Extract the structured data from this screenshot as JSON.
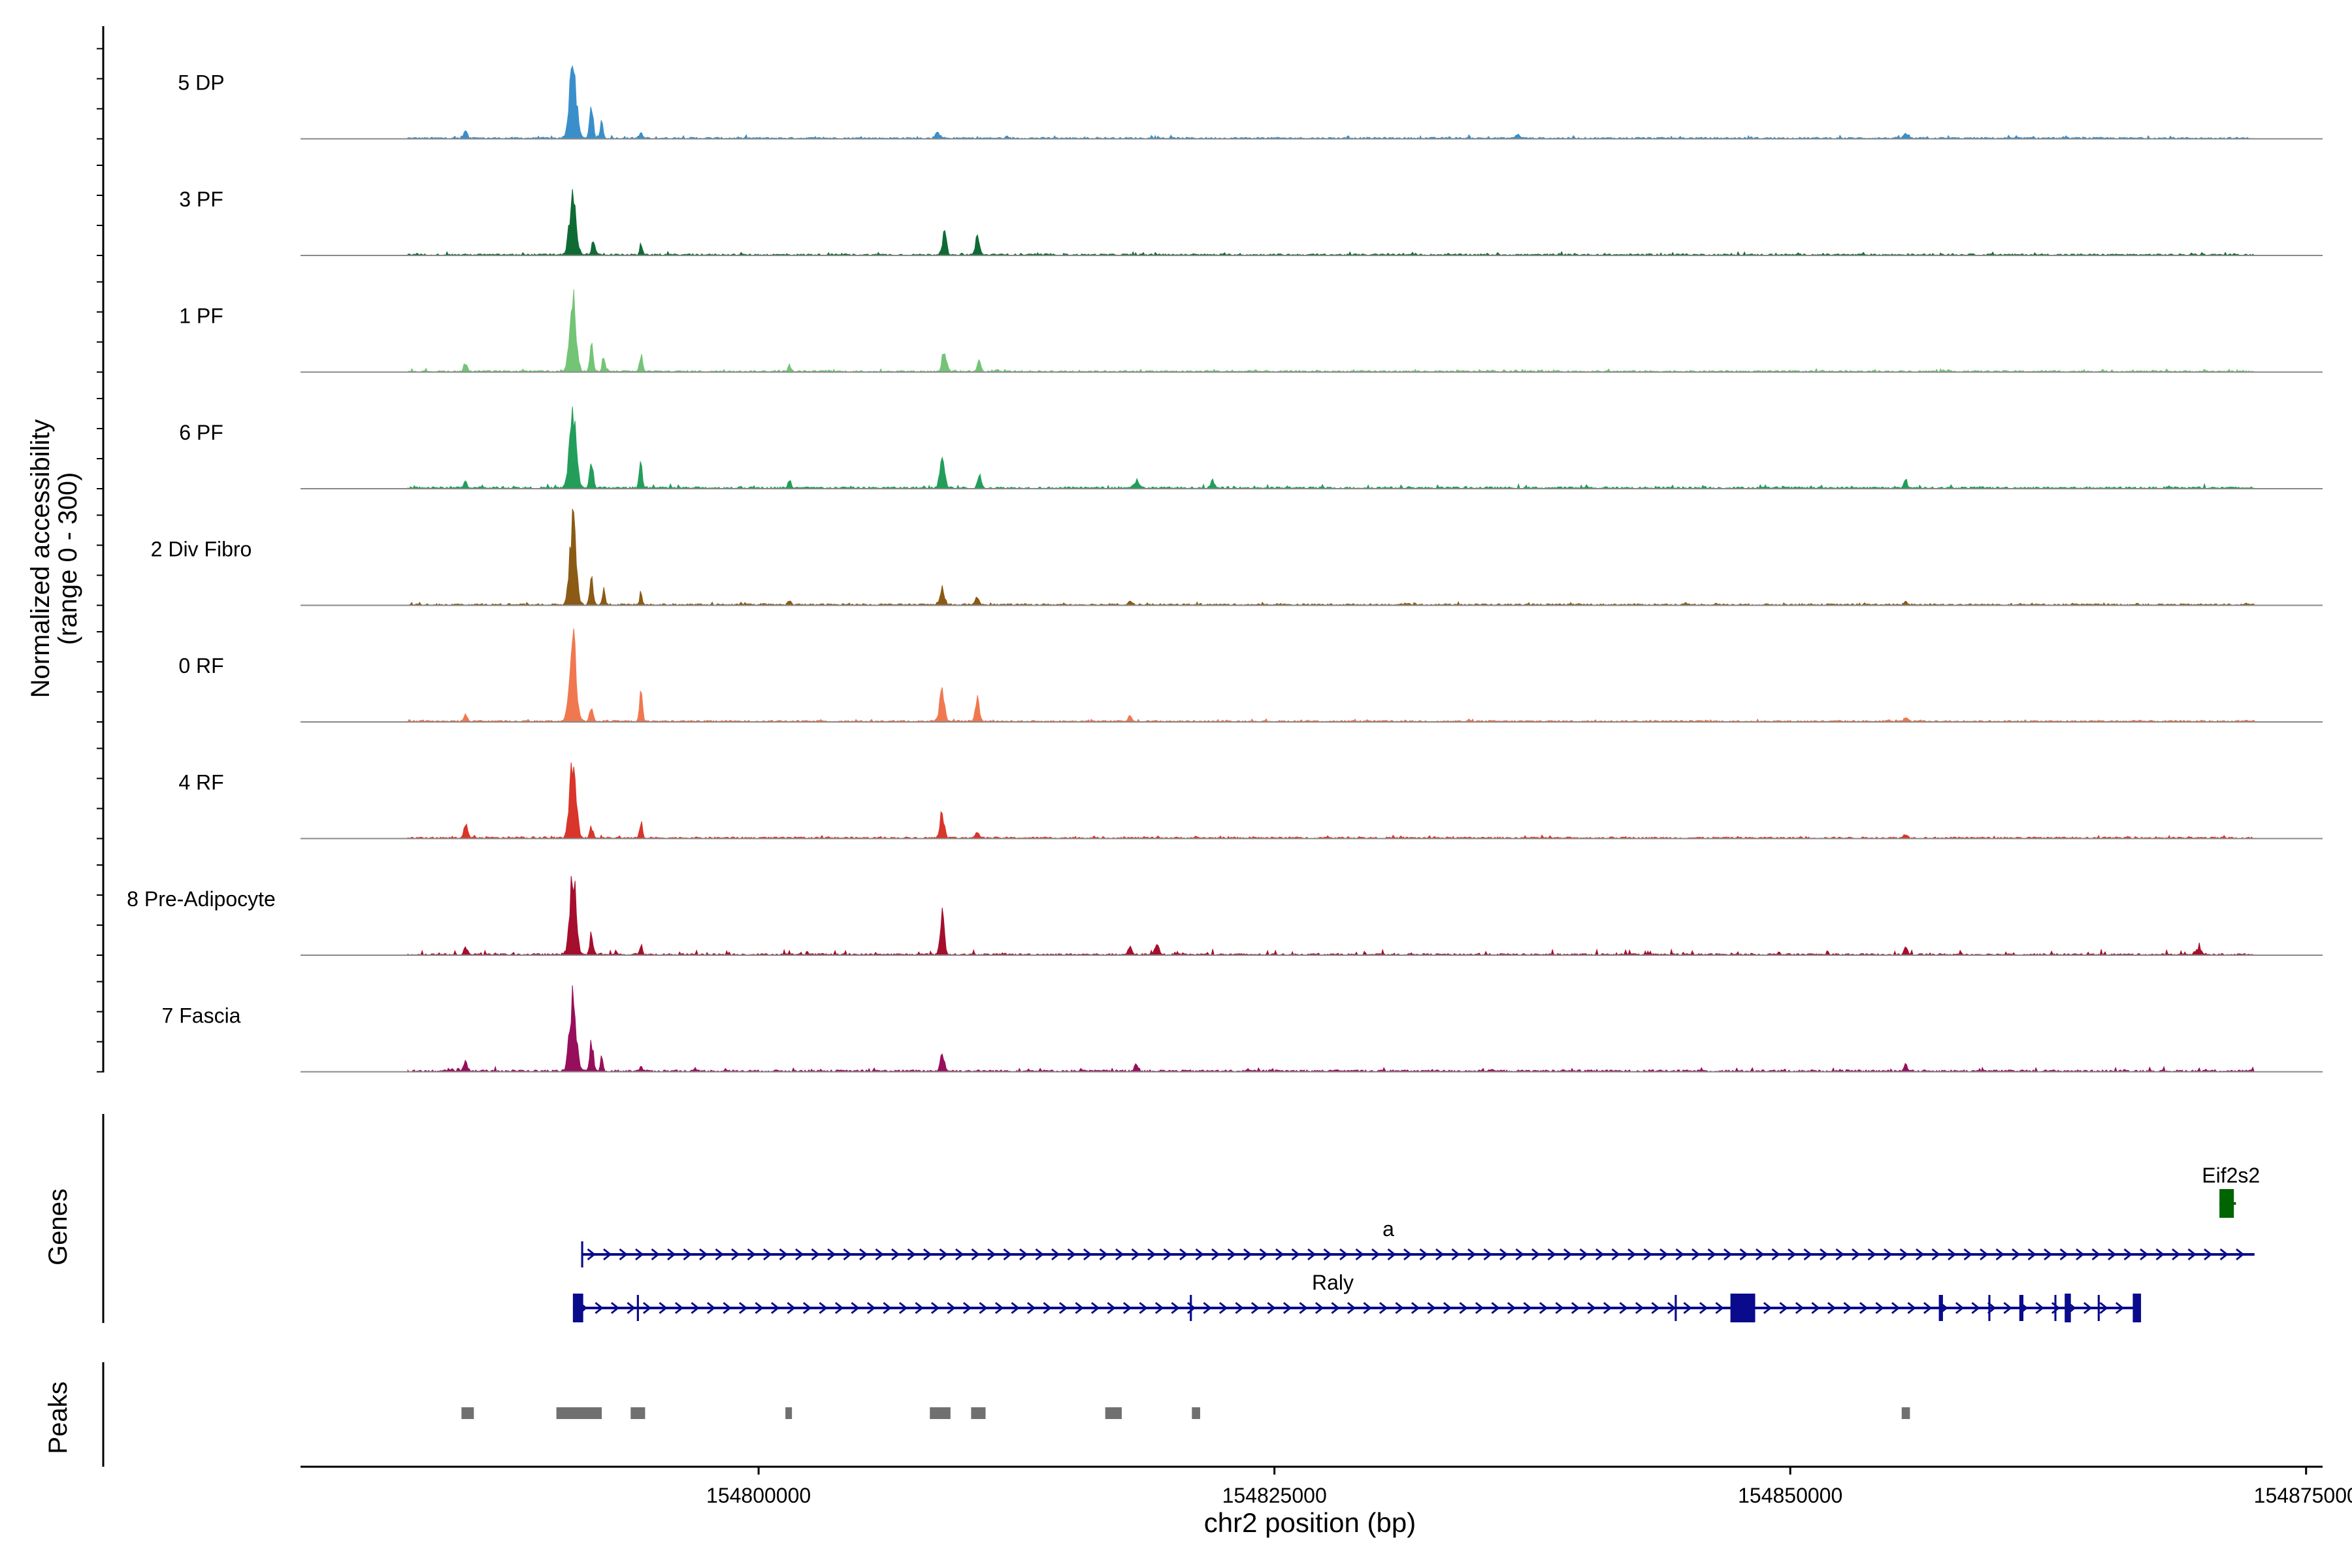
{
  "chart_data": {
    "type": "area",
    "title": "",
    "ylabel_line1": "Normalized accessibility",
    "ylabel_line2": "(range 0 - 300)",
    "ylim": [
      0,
      300
    ],
    "xlabel": "chr2 position (bp)",
    "xlim": [
      154777800,
      154875800
    ],
    "xticks": [
      154800000,
      154825000,
      154850000,
      154875000
    ],
    "xtick_labels": [
      "154800000",
      "154825000",
      "154850000",
      "154875000"
    ],
    "track_start": 154783000,
    "track_end": 154872500,
    "tracks": [
      {
        "name": "5 DP",
        "color": "#3A8FCB",
        "baseline": 5,
        "noise": 8,
        "peaks": [
          [
            154785800,
            28,
            80
          ],
          [
            154791000,
            300,
            160
          ],
          [
            154791900,
            120,
            80
          ],
          [
            154792400,
            75,
            60
          ],
          [
            154794300,
            22,
            60
          ],
          [
            154808700,
            18,
            120
          ],
          [
            154836800,
            14,
            100
          ],
          [
            154855600,
            14,
            100
          ]
        ]
      },
      {
        "name": "3 PF",
        "color": "#0F6B34",
        "baseline": 5,
        "noise": 7,
        "peaks": [
          [
            154791000,
            270,
            150
          ],
          [
            154792000,
            60,
            80
          ],
          [
            154794300,
            45,
            60
          ],
          [
            154809000,
            80,
            100
          ],
          [
            154810600,
            65,
            100
          ]
        ]
      },
      {
        "name": "1 PF",
        "color": "#73C476",
        "baseline": 5,
        "noise": 7,
        "peaks": [
          [
            154785800,
            40,
            80
          ],
          [
            154791000,
            300,
            150
          ],
          [
            154791900,
            110,
            80
          ],
          [
            154792500,
            70,
            60
          ],
          [
            154794300,
            65,
            70
          ],
          [
            154801500,
            30,
            70
          ],
          [
            154809000,
            85,
            100
          ],
          [
            154810700,
            40,
            80
          ]
        ]
      },
      {
        "name": "6 PF",
        "color": "#229E5A",
        "baseline": 6,
        "noise": 9,
        "peaks": [
          [
            154785800,
            30,
            80
          ],
          [
            154791000,
            290,
            160
          ],
          [
            154791900,
            100,
            80
          ],
          [
            154794300,
            105,
            70
          ],
          [
            154801500,
            30,
            70
          ],
          [
            154808900,
            130,
            110
          ],
          [
            154810700,
            55,
            80
          ],
          [
            154818300,
            28,
            120
          ],
          [
            154822000,
            25,
            80
          ],
          [
            154855600,
            28,
            80
          ]
        ]
      },
      {
        "name": "2 Div Fibro",
        "color": "#8B5A14",
        "baseline": 5,
        "noise": 6,
        "peaks": [
          [
            154791000,
            300,
            150
          ],
          [
            154791900,
            90,
            80
          ],
          [
            154792500,
            70,
            60
          ],
          [
            154794300,
            45,
            60
          ],
          [
            154801500,
            18,
            70
          ],
          [
            154808900,
            60,
            100
          ],
          [
            154810600,
            32,
            80
          ],
          [
            154818000,
            14,
            90
          ],
          [
            154855600,
            12,
            80
          ]
        ]
      },
      {
        "name": "0 RF",
        "color": "#F07850",
        "baseline": 5,
        "noise": 5,
        "peaks": [
          [
            154785800,
            28,
            80
          ],
          [
            154791000,
            300,
            160
          ],
          [
            154791900,
            60,
            80
          ],
          [
            154794300,
            110,
            70
          ],
          [
            154808900,
            130,
            110
          ],
          [
            154810600,
            85,
            90
          ],
          [
            154818000,
            22,
            80
          ],
          [
            154855600,
            18,
            80
          ]
        ]
      },
      {
        "name": "4 RF",
        "color": "#D9352A",
        "baseline": 5,
        "noise": 6,
        "peaks": [
          [
            154785800,
            55,
            80
          ],
          [
            154791000,
            280,
            150
          ],
          [
            154791900,
            40,
            80
          ],
          [
            154794300,
            55,
            70
          ],
          [
            154808900,
            100,
            100
          ],
          [
            154810600,
            25,
            80
          ],
          [
            154855600,
            15,
            80
          ]
        ]
      },
      {
        "name": "8 Pre-Adipocyte",
        "color": "#A50F2D",
        "baseline": 5,
        "noise": 14,
        "peaks": [
          [
            154785800,
            30,
            80
          ],
          [
            154791000,
            300,
            150
          ],
          [
            154791900,
            80,
            80
          ],
          [
            154794300,
            40,
            60
          ],
          [
            154808900,
            150,
            100
          ],
          [
            154818000,
            28,
            80
          ],
          [
            154819300,
            45,
            90
          ],
          [
            154855600,
            25,
            80
          ],
          [
            154869800,
            22,
            150
          ]
        ]
      },
      {
        "name": "7 Fascia",
        "color": "#970F5C",
        "baseline": 6,
        "noise": 10,
        "peaks": [
          [
            154785800,
            50,
            80
          ],
          [
            154791000,
            300,
            150
          ],
          [
            154791900,
            120,
            80
          ],
          [
            154792400,
            55,
            60
          ],
          [
            154794300,
            18,
            60
          ],
          [
            154808900,
            60,
            100
          ],
          [
            154818300,
            25,
            80
          ],
          [
            154855600,
            25,
            80
          ]
        ]
      }
    ],
    "genes": [
      {
        "name": "a",
        "color": "#0A0A8C",
        "strand": "+",
        "start": 154791400,
        "end": 154872500,
        "exons": [
          [
            154791400,
            154791500
          ]
        ]
      },
      {
        "name": "Raly",
        "color": "#0A0A8C",
        "strand": "+",
        "start": 154791000,
        "end": 154866900,
        "exons": [
          [
            154791000,
            154791500
          ],
          [
            154794100,
            154794200
          ],
          [
            154820900,
            154821000
          ],
          [
            154844400,
            154844500
          ],
          [
            154847100,
            154848300
          ],
          [
            154857200,
            154857400
          ],
          [
            154859600,
            154859700
          ],
          [
            154861100,
            154861300
          ],
          [
            154862800,
            154862900
          ],
          [
            154863300,
            154863600
          ],
          [
            154864900,
            154865000
          ],
          [
            154866600,
            154867000
          ]
        ]
      },
      {
        "name": "Eif2s2",
        "color": "#006400",
        "strand": "+",
        "start": 154870800,
        "end": 154871600,
        "exons": [
          [
            154870800,
            154871500
          ]
        ]
      }
    ],
    "panel_labels": {
      "genes": "Genes",
      "peaks": "Peaks"
    },
    "peaks": [
      [
        154785600,
        154786200
      ],
      [
        154790200,
        154792400
      ],
      [
        154793800,
        154794500
      ],
      [
        154801300,
        154801600
      ],
      [
        154808300,
        154809300
      ],
      [
        154810300,
        154811000
      ],
      [
        154816800,
        154817600
      ],
      [
        154821000,
        154821400
      ],
      [
        154855400,
        154855800
      ]
    ],
    "peak_color": "#707070"
  }
}
